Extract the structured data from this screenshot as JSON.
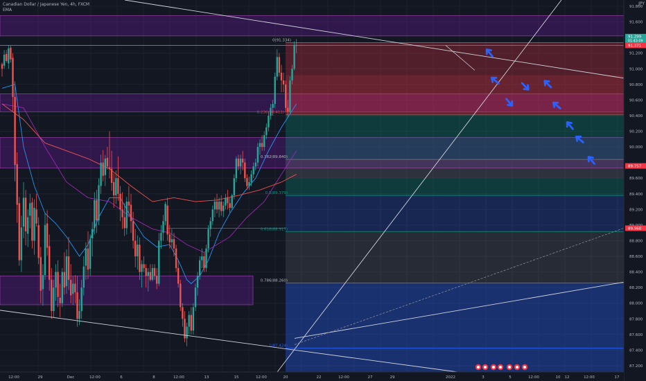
{
  "header": {
    "title": "Canadian Dollar / Japanese Yen, 4h, FXCM",
    "indicator": "EMA",
    "currency": "JPY"
  },
  "chart_data": {
    "type": "candlestick",
    "title": "Canadian Dollar / Japanese Yen, 4h, FXCM",
    "ylim": [
      87.12,
      91.88
    ],
    "y_ticks": [
      "87.200",
      "87.400",
      "87.600",
      "87.800",
      "88.000",
      "88.200",
      "88.400",
      "88.600",
      "88.800",
      "89.000",
      "89.200",
      "89.400",
      "89.600",
      "90.000",
      "90.200",
      "90.400",
      "90.600",
      "90.800",
      "91.000",
      "91.200",
      "91.600",
      "91.800"
    ],
    "x_ticks": [
      "12:00",
      "29",
      "Dec",
      "12:00",
      "6",
      "8",
      "12:00",
      "13",
      "15",
      "12:00",
      "20",
      "22",
      "12:00",
      "27",
      "29",
      "2022",
      "3",
      "5",
      "12:00",
      "10",
      "12",
      "12:00",
      "17"
    ],
    "price_labels": {
      "last_price": "91.299",
      "countdown": "01:43:09",
      "price_2": "91.371",
      "price_3": "89.757",
      "price_4": "89.960"
    },
    "fib_levels": [
      {
        "label": "0(91.334)",
        "value": 91.334
      },
      {
        "label": "0.236(90.411)",
        "value": 90.411
      },
      {
        "label": "0.382(89.840)",
        "value": 89.84
      },
      {
        "label": "0.5(89.379)",
        "value": 89.379
      },
      {
        "label": "0.618(88.917)",
        "value": 88.917
      },
      {
        "label": "0.786(88.260)",
        "value": 88.26
      },
      {
        "label": "1(87.424)",
        "value": 87.424
      }
    ],
    "series": [
      {
        "candles": [
          [
            91.06,
            91.08,
            90.9,
            91.0
          ],
          [
            91.04,
            91.24,
            91.0,
            91.18
          ],
          [
            91.19,
            91.24,
            91.08,
            91.1
          ],
          [
            91.07,
            91.3,
            91.0,
            91.26
          ],
          [
            91.27,
            91.3,
            91.08,
            91.12
          ],
          [
            91.14,
            91.2,
            90.46,
            90.64
          ],
          [
            90.64,
            90.84,
            89.56,
            89.77
          ],
          [
            89.78,
            89.93,
            89.03,
            89.26
          ],
          [
            89.28,
            89.36,
            88.48,
            88.55
          ],
          [
            88.55,
            89.12,
            88.4,
            88.97
          ],
          [
            88.98,
            89.55,
            88.83,
            89.35
          ],
          [
            89.35,
            89.45,
            88.74,
            88.92
          ],
          [
            88.89,
            89.2,
            88.72,
            89.1
          ],
          [
            89.12,
            89.4,
            88.96,
            89.28
          ],
          [
            89.29,
            89.35,
            88.7,
            88.8
          ],
          [
            88.8,
            89.33,
            88.62,
            89.22
          ],
          [
            89.2,
            89.4,
            88.98,
            89.02
          ],
          [
            89.0,
            89.1,
            88.5,
            88.58
          ],
          [
            88.59,
            88.72,
            88.0,
            88.16
          ],
          [
            88.18,
            88.5,
            87.97,
            88.36
          ],
          [
            88.36,
            89.16,
            88.3,
            89.0
          ],
          [
            89.02,
            89.19,
            88.61,
            88.71
          ],
          [
            88.73,
            88.88,
            88.16,
            88.3
          ],
          [
            88.3,
            88.45,
            87.8,
            87.9
          ],
          [
            87.9,
            88.3,
            87.82,
            88.2
          ],
          [
            88.2,
            88.5,
            88.03,
            88.4
          ],
          [
            88.4,
            88.55,
            87.95,
            88.08
          ],
          [
            88.07,
            88.25,
            87.82,
            88.0
          ],
          [
            88.0,
            88.45,
            87.95,
            88.4
          ],
          [
            88.4,
            88.65,
            88.11,
            88.2
          ],
          [
            88.22,
            88.69,
            88.12,
            88.6
          ],
          [
            88.6,
            88.85,
            88.17,
            88.3
          ],
          [
            88.3,
            88.5,
            88.0,
            88.1
          ],
          [
            88.12,
            88.35,
            87.98,
            88.25
          ],
          [
            88.25,
            88.36,
            88.0,
            88.14
          ],
          [
            88.14,
            88.35,
            87.7,
            87.8
          ],
          [
            87.8,
            88.05,
            87.72,
            87.9
          ],
          [
            87.9,
            88.3,
            87.8,
            88.2
          ],
          [
            88.2,
            88.6,
            88.1,
            88.47
          ],
          [
            88.48,
            88.78,
            88.3,
            88.7
          ],
          [
            88.7,
            88.92,
            88.31,
            88.43
          ],
          [
            88.44,
            88.88,
            88.35,
            88.82
          ],
          [
            88.83,
            89.04,
            88.6,
            88.95
          ],
          [
            88.96,
            89.42,
            88.88,
            89.32
          ],
          [
            89.32,
            89.45,
            88.9,
            89.06
          ],
          [
            89.06,
            89.6,
            89.0,
            89.51
          ],
          [
            89.5,
            89.9,
            89.4,
            89.8
          ],
          [
            89.8,
            89.96,
            89.56,
            89.63
          ],
          [
            89.64,
            89.9,
            89.5,
            89.85
          ],
          [
            89.86,
            90.0,
            89.71,
            89.75
          ],
          [
            89.74,
            90.2,
            89.6,
            89.72
          ],
          [
            89.72,
            89.95,
            89.44,
            89.54
          ],
          [
            89.55,
            89.66,
            89.22,
            89.38
          ],
          [
            89.38,
            89.7,
            89.27,
            89.6
          ],
          [
            89.6,
            89.88,
            89.31,
            89.4
          ],
          [
            89.4,
            89.5,
            89.05,
            89.2
          ],
          [
            89.2,
            89.42,
            88.95,
            89.1
          ],
          [
            89.1,
            89.28,
            88.86,
            88.96
          ],
          [
            88.96,
            89.36,
            88.88,
            89.3
          ],
          [
            89.3,
            89.5,
            89.1,
            89.25
          ],
          [
            89.26,
            89.4,
            88.9,
            89.05
          ],
          [
            89.05,
            89.17,
            88.7,
            88.8
          ],
          [
            88.8,
            88.95,
            88.46,
            88.6
          ],
          [
            88.6,
            88.87,
            88.43,
            88.75
          ],
          [
            88.75,
            88.84,
            88.3,
            88.4
          ],
          [
            88.4,
            88.55,
            88.2,
            88.5
          ],
          [
            88.5,
            88.6,
            88.4,
            88.45
          ],
          [
            88.45,
            88.5,
            88.2,
            88.35
          ],
          [
            88.35,
            88.45,
            88.15,
            88.4
          ],
          [
            88.4,
            88.5,
            88.28,
            88.3
          ],
          [
            88.3,
            88.5,
            88.28,
            88.45
          ],
          [
            88.45,
            88.5,
            88.3,
            88.35
          ],
          [
            88.35,
            88.45,
            88.18,
            88.25
          ],
          [
            88.25,
            88.9,
            88.22,
            88.8
          ],
          [
            88.8,
            89.0,
            88.7,
            88.9
          ],
          [
            88.9,
            89.13,
            88.8,
            89.05
          ],
          [
            89.05,
            89.3,
            89.0,
            89.27
          ],
          [
            89.25,
            89.35,
            88.8,
            88.88
          ],
          [
            88.88,
            89.0,
            88.7,
            88.78
          ],
          [
            88.78,
            88.95,
            88.72,
            88.82
          ],
          [
            88.82,
            88.9,
            88.6,
            88.7
          ],
          [
            88.7,
            88.75,
            88.4,
            88.45
          ],
          [
            88.45,
            88.55,
            88.2,
            88.25
          ],
          [
            88.25,
            88.3,
            87.9,
            87.95
          ],
          [
            87.95,
            88.0,
            87.7,
            87.8
          ],
          [
            87.8,
            87.9,
            87.5,
            87.55
          ],
          [
            87.55,
            87.75,
            87.45,
            87.7
          ],
          [
            87.7,
            87.9,
            87.6,
            87.85
          ],
          [
            87.85,
            87.95,
            87.6,
            87.65
          ],
          [
            87.65,
            88.0,
            87.6,
            87.95
          ],
          [
            87.95,
            88.25,
            87.9,
            88.2
          ],
          [
            88.2,
            88.4,
            88.1,
            88.35
          ],
          [
            88.35,
            88.6,
            88.3,
            88.55
          ],
          [
            88.55,
            88.7,
            88.45,
            88.6
          ],
          [
            88.6,
            88.65,
            88.4,
            88.45
          ],
          [
            88.45,
            88.75,
            88.4,
            88.7
          ],
          [
            88.7,
            89.0,
            88.65,
            88.95
          ],
          [
            88.95,
            89.1,
            88.85,
            89.05
          ],
          [
            89.05,
            89.25,
            89.0,
            89.2
          ],
          [
            89.2,
            89.35,
            89.1,
            89.3
          ],
          [
            89.3,
            89.4,
            89.15,
            89.2
          ],
          [
            89.2,
            89.35,
            89.1,
            89.3
          ],
          [
            89.3,
            89.38,
            89.12,
            89.18
          ],
          [
            89.18,
            89.3,
            89.1,
            89.25
          ],
          [
            89.25,
            89.4,
            89.2,
            89.35
          ],
          [
            89.35,
            89.45,
            89.2,
            89.28
          ],
          [
            89.28,
            89.35,
            89.16,
            89.22
          ],
          [
            89.22,
            89.4,
            89.2,
            89.38
          ],
          [
            89.38,
            89.65,
            89.33,
            89.6
          ],
          [
            89.6,
            89.88,
            89.55,
            89.85
          ],
          [
            89.85,
            89.9,
            89.7,
            89.75
          ],
          [
            89.75,
            89.9,
            89.65,
            89.85
          ],
          [
            89.85,
            89.95,
            89.7,
            89.8
          ],
          [
            89.8,
            89.85,
            89.55,
            89.6
          ],
          [
            89.6,
            89.65,
            89.45,
            89.5
          ],
          [
            89.5,
            89.62,
            89.45,
            89.55
          ],
          [
            89.55,
            89.7,
            89.5,
            89.65
          ],
          [
            89.65,
            89.8,
            89.6,
            89.75
          ],
          [
            89.75,
            89.85,
            89.7,
            89.8
          ],
          [
            89.8,
            90.05,
            89.75,
            90.0
          ],
          [
            90.0,
            90.1,
            89.9,
            90.05
          ],
          [
            90.05,
            90.15,
            89.95,
            90.0
          ],
          [
            90.0,
            90.2,
            89.95,
            90.15
          ],
          [
            90.15,
            90.3,
            90.1,
            90.25
          ],
          [
            90.25,
            90.45,
            90.2,
            90.4
          ],
          [
            90.4,
            90.55,
            90.35,
            90.5
          ],
          [
            90.5,
            90.6,
            90.4,
            90.55
          ],
          [
            90.55,
            90.95,
            90.5,
            90.9
          ],
          [
            90.9,
            91.25,
            90.85,
            91.15
          ],
          [
            91.15,
            91.2,
            90.9,
            90.95
          ],
          [
            90.95,
            91.05,
            90.7,
            90.85
          ],
          [
            90.85,
            90.95,
            90.7,
            90.8
          ],
          [
            90.8,
            90.85,
            90.45,
            90.5
          ],
          [
            90.5,
            90.6,
            90.38,
            90.45
          ],
          [
            90.45,
            90.9,
            90.42,
            90.85
          ],
          [
            90.85,
            91.05,
            90.8,
            91.0
          ],
          [
            91.0,
            91.35,
            90.98,
            91.3
          ],
          [
            91.3,
            91.38,
            91.2,
            91.3
          ]
        ]
      },
      {
        "name": "EMA 20",
        "color": "#2196f3",
        "values": [
          [
            0,
            90.75
          ],
          [
            6,
            90.8
          ],
          [
            10,
            90.0
          ],
          [
            15,
            89.5
          ],
          [
            20,
            89.15
          ],
          [
            25,
            89.02
          ],
          [
            30,
            88.85
          ],
          [
            36,
            88.6
          ],
          [
            40,
            88.75
          ],
          [
            45,
            89.1
          ],
          [
            50,
            89.35
          ],
          [
            55,
            89.35
          ],
          [
            60,
            89.1
          ],
          [
            66,
            88.85
          ],
          [
            72,
            88.72
          ],
          [
            78,
            88.75
          ],
          [
            82,
            88.55
          ],
          [
            86,
            88.3
          ],
          [
            88,
            88.25
          ],
          [
            92,
            88.35
          ],
          [
            96,
            88.55
          ],
          [
            101,
            88.9
          ],
          [
            106,
            89.15
          ],
          [
            112,
            89.4
          ],
          [
            118,
            89.6
          ],
          [
            124,
            89.95
          ],
          [
            130,
            90.25
          ],
          [
            137,
            90.55
          ]
        ]
      },
      {
        "name": "EMA 50",
        "color": "#9c27b0",
        "values": [
          [
            0,
            90.55
          ],
          [
            10,
            90.5
          ],
          [
            20,
            90.0
          ],
          [
            30,
            89.55
          ],
          [
            40,
            89.35
          ],
          [
            50,
            89.3
          ],
          [
            60,
            89.1
          ],
          [
            70,
            88.95
          ],
          [
            78,
            88.9
          ],
          [
            86,
            88.75
          ],
          [
            94,
            88.65
          ],
          [
            100,
            88.75
          ],
          [
            106,
            88.85
          ],
          [
            114,
            89.1
          ],
          [
            122,
            89.3
          ],
          [
            130,
            89.65
          ],
          [
            137,
            89.95
          ]
        ]
      },
      {
        "name": "EMA 100",
        "color": "#ef5350",
        "values": [
          [
            0,
            90.55
          ],
          [
            10,
            90.35
          ],
          [
            20,
            90.05
          ],
          [
            30,
            89.95
          ],
          [
            40,
            89.85
          ],
          [
            50,
            89.72
          ],
          [
            60,
            89.5
          ],
          [
            70,
            89.3
          ],
          [
            80,
            89.35
          ],
          [
            90,
            89.3
          ],
          [
            100,
            89.32
          ],
          [
            110,
            89.38
          ],
          [
            120,
            89.45
          ],
          [
            130,
            89.55
          ],
          [
            137,
            89.65
          ]
        ]
      }
    ]
  }
}
